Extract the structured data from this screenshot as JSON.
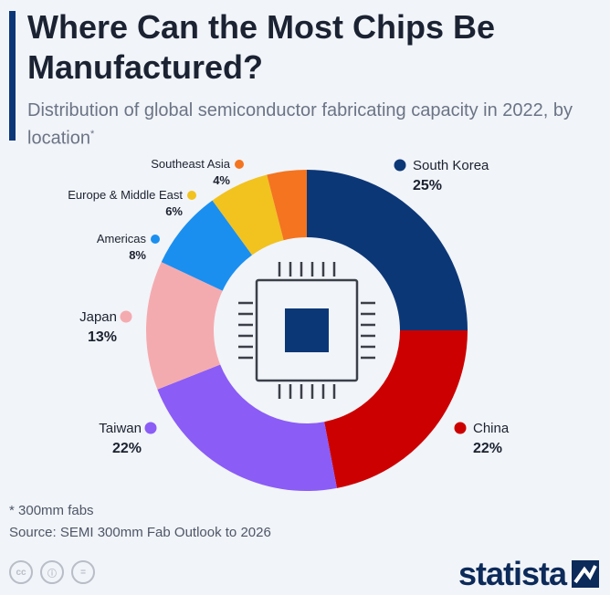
{
  "title": "Where Can the Most Chips Be Manufactured?",
  "subtitle": "Distribution of global semiconductor fabricating capacity in 2022, by location",
  "subtitle_mark": "*",
  "footnote": "* 300mm fabs",
  "source": "Source: SEMI 300mm Fab Outlook to 2026",
  "brand": "statista",
  "license_icons": [
    "cc-icon",
    "by-icon",
    "nd-icon"
  ],
  "chart_data": {
    "type": "pie",
    "variant": "donut",
    "center_icon": "chip-icon",
    "unit": "%",
    "slices": [
      {
        "label": "South Korea",
        "value": 25,
        "display": "25%",
        "color": "#0c3777"
      },
      {
        "label": "China",
        "value": 22,
        "display": "22%",
        "color": "#cc0000"
      },
      {
        "label": "Taiwan",
        "value": 22,
        "display": "22%",
        "color": "#8b5cf6"
      },
      {
        "label": "Japan",
        "value": 13,
        "display": "13%",
        "color": "#f4abb0"
      },
      {
        "label": "Americas",
        "value": 8,
        "display": "8%",
        "color": "#1a8ff0"
      },
      {
        "label": "Europe & Middle East",
        "value": 6,
        "display": "6%",
        "color": "#f2c21f"
      },
      {
        "label": "Southeast Asia",
        "value": 4,
        "display": "4%",
        "color": "#f47420"
      }
    ]
  }
}
